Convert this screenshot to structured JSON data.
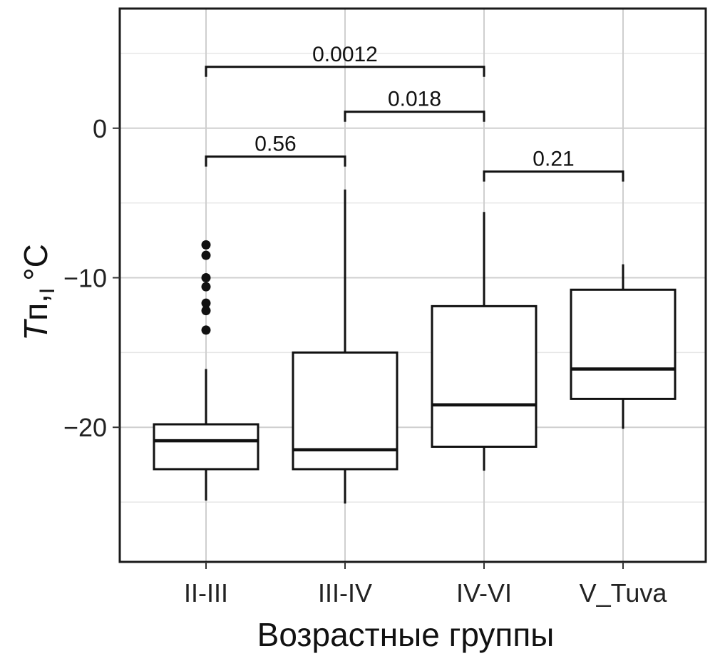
{
  "chart_data": {
    "type": "box",
    "title": "",
    "xlabel": "Возрастные группы",
    "ylabel": {
      "symbol": "T",
      "subscript": "п,",
      "subscript2": "I",
      "unit": "°C"
    },
    "ylim": [
      -29,
      8
    ],
    "yticks": [
      -20,
      -10,
      0
    ],
    "ytick_labels": [
      "−20",
      "−10",
      "0"
    ],
    "grid": true,
    "categories": [
      "II-III",
      "III-IV",
      "IV-VI",
      "V_Tuva"
    ],
    "boxes": [
      {
        "category": "II-III",
        "whisker_low": -24.9,
        "q1": -22.8,
        "median": -20.9,
        "q3": -19.8,
        "whisker_high": -16.1,
        "outliers": [
          -7.8,
          -8.5,
          -10.0,
          -10.6,
          -11.7,
          -12.2,
          -13.5
        ]
      },
      {
        "category": "III-IV",
        "whisker_low": -25.1,
        "q1": -22.8,
        "median": -21.5,
        "q3": -15.0,
        "whisker_high": -4.1,
        "outliers": []
      },
      {
        "category": "IV-VI",
        "whisker_low": -22.9,
        "q1": -21.3,
        "median": -18.5,
        "q3": -11.9,
        "whisker_high": -5.6,
        "outliers": []
      },
      {
        "category": "V_Tuva",
        "whisker_low": -20.1,
        "q1": -18.1,
        "median": -16.1,
        "q3": -10.8,
        "whisker_high": -9.1,
        "outliers": []
      }
    ],
    "comparisons": [
      {
        "from": "II-III",
        "to": "IV-VI",
        "p": "0.0012",
        "y": 4.1
      },
      {
        "from": "III-IV",
        "to": "IV-VI",
        "p": "0.018",
        "y": 1.1
      },
      {
        "from": "II-III",
        "to": "III-IV",
        "p": "0.56",
        "y": -1.9
      },
      {
        "from": "IV-VI",
        "to": "V_Tuva",
        "p": "0.21",
        "y": -2.9
      }
    ]
  }
}
